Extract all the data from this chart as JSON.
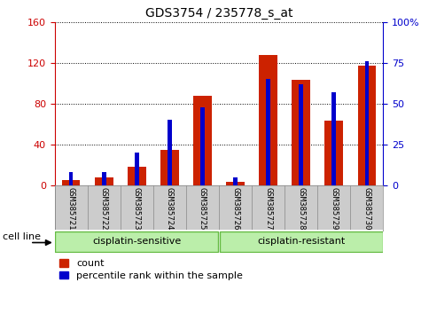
{
  "title": "GDS3754 / 235778_s_at",
  "samples": [
    "GSM385721",
    "GSM385722",
    "GSM385723",
    "GSM385724",
    "GSM385725",
    "GSM385726",
    "GSM385727",
    "GSM385728",
    "GSM385729",
    "GSM385730"
  ],
  "count_values": [
    5,
    8,
    18,
    35,
    88,
    3,
    128,
    103,
    63,
    117
  ],
  "percentile_values": [
    8,
    8,
    20,
    40,
    48,
    5,
    65,
    62,
    57,
    76
  ],
  "left_ylim": [
    0,
    160
  ],
  "right_ylim": [
    0,
    100
  ],
  "left_yticks": [
    0,
    40,
    80,
    120,
    160
  ],
  "right_yticks": [
    0,
    25,
    50,
    75,
    100
  ],
  "right_yticklabels": [
    "0",
    "25",
    "50",
    "75",
    "100%"
  ],
  "left_tick_color": "#cc0000",
  "right_tick_color": "#0000cc",
  "count_color": "#cc2200",
  "percentile_color": "#0000cc",
  "group1_label": "cisplatin-sensitive",
  "group2_label": "cisplatin-resistant",
  "group1_indices": [
    0,
    1,
    2,
    3,
    4
  ],
  "group2_indices": [
    5,
    6,
    7,
    8,
    9
  ],
  "group_bg_color": "#bbeeaa",
  "group_edge_color": "#66bb44",
  "cell_line_label": "cell line",
  "legend_count": "count",
  "legend_percentile": "percentile rank within the sample",
  "xlabel_area_color": "#cccccc",
  "grid_color": "#000000"
}
